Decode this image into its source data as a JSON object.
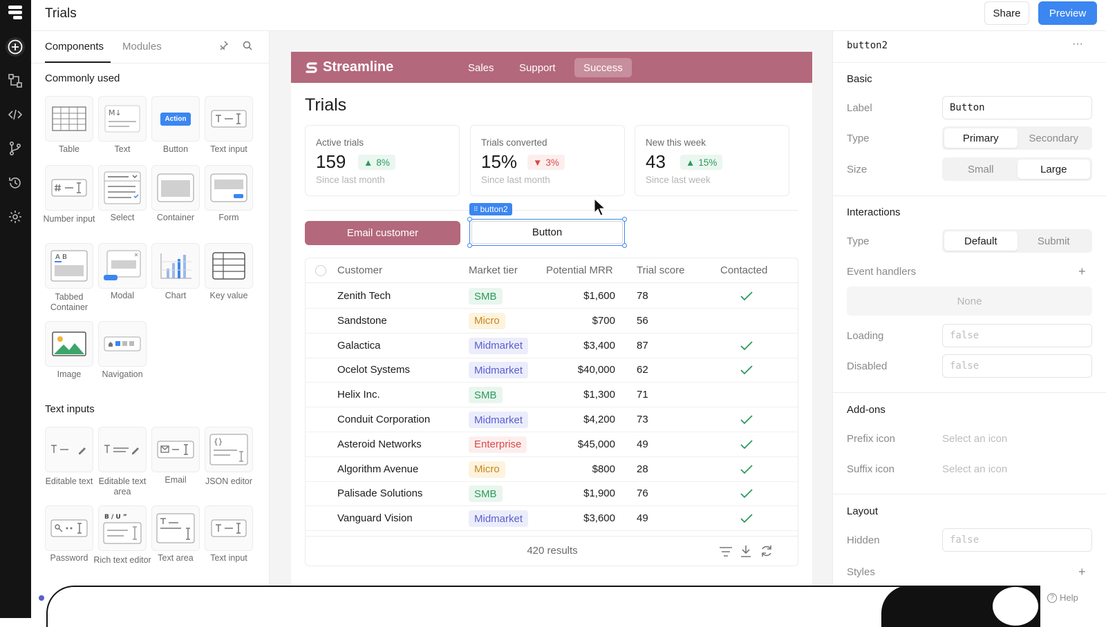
{
  "topbar": {
    "title": "Trials",
    "share_label": "Share",
    "preview_label": "Preview"
  },
  "left_panel": {
    "tabs": [
      "Components",
      "Modules"
    ],
    "active_tab": "Components",
    "sections": [
      {
        "title": "Commonly used",
        "items": [
          "Table",
          "Text",
          "Button",
          "Text input",
          "Number input",
          "Select",
          "Container",
          "Form",
          "Tabbed Container",
          "Modal",
          "Chart",
          "Key value",
          "Image",
          "Navigation"
        ]
      },
      {
        "title": "Text inputs",
        "items": [
          "Editable text",
          "Editable text area",
          "Email",
          "JSON editor",
          "Password",
          "Rich text editor",
          "Text area",
          "Text input"
        ]
      }
    ],
    "button_tile_text": "Action",
    "tabbed_tile_text": "A B",
    "markdown_tile_text": "M↓",
    "richtext_tile_text": "B / U ”"
  },
  "app": {
    "brand": "Streamline",
    "nav": [
      "Sales",
      "Support",
      "Success"
    ],
    "active_nav": "Success",
    "title": "Trials",
    "stats": [
      {
        "label": "Active trials",
        "value": "159",
        "delta": "8%",
        "direction": "up",
        "sub": "Since last month"
      },
      {
        "label": "Trials converted",
        "value": "15%",
        "delta": "3%",
        "direction": "down",
        "sub": "Since last month"
      },
      {
        "label": "New this week",
        "value": "43",
        "delta": "15%",
        "direction": "up",
        "sub": "Since last week"
      }
    ],
    "email_button": "Email customer",
    "selected_tag": "button2",
    "selected_button_label": "Button",
    "table": {
      "columns": [
        "Customer",
        "Market tier",
        "Potential MRR",
        "Trial score",
        "Contacted"
      ],
      "rows": [
        {
          "customer": "Zenith Tech",
          "tier": "SMB",
          "mrr": "$1,600",
          "score": "78",
          "contacted": true
        },
        {
          "customer": "Sandstone",
          "tier": "Micro",
          "mrr": "$700",
          "score": "56",
          "contacted": false
        },
        {
          "customer": "Galactica",
          "tier": "Midmarket",
          "mrr": "$3,400",
          "score": "87",
          "contacted": true
        },
        {
          "customer": "Ocelot Systems",
          "tier": "Midmarket",
          "mrr": "$40,000",
          "score": "62",
          "contacted": true
        },
        {
          "customer": "Helix Inc.",
          "tier": "SMB",
          "mrr": "$1,300",
          "score": "71",
          "contacted": false
        },
        {
          "customer": "Conduit Corporation",
          "tier": "Midmarket",
          "mrr": "$4,200",
          "score": "73",
          "contacted": true
        },
        {
          "customer": "Asteroid Networks",
          "tier": "Enterprise",
          "mrr": "$45,000",
          "score": "49",
          "contacted": true
        },
        {
          "customer": "Algorithm Avenue",
          "tier": "Micro",
          "mrr": "$800",
          "score": "28",
          "contacted": true
        },
        {
          "customer": "Palisade Solutions",
          "tier": "SMB",
          "mrr": "$1,900",
          "score": "76",
          "contacted": true
        },
        {
          "customer": "Vanguard Vision",
          "tier": "Midmarket",
          "mrr": "$3,600",
          "score": "49",
          "contacted": true
        }
      ],
      "footer": "420 results"
    },
    "tier_colors": {
      "SMB": {
        "bg": "#e8f6ee",
        "fg": "#2d9a5b"
      },
      "Micro": {
        "bg": "#fdf3de",
        "fg": "#c9861a"
      },
      "Midmarket": {
        "bg": "#ecedfb",
        "fg": "#5a5fcf"
      },
      "Enterprise": {
        "bg": "#fdeeee",
        "fg": "#d84a4a"
      }
    }
  },
  "right_panel": {
    "component_name": "button2",
    "basic": {
      "title": "Basic",
      "label_label": "Label",
      "label_value": "Button",
      "type_label": "Type",
      "type_options": [
        "Primary",
        "Secondary"
      ],
      "type_selected": "Primary",
      "size_label": "Size",
      "size_options": [
        "Small",
        "Large"
      ],
      "size_selected": "Large"
    },
    "interactions": {
      "title": "Interactions",
      "type_label": "Type",
      "type_options": [
        "Default",
        "Submit"
      ],
      "type_selected": "Default",
      "event_handlers_label": "Event handlers",
      "event_handlers_value": "None",
      "loading_label": "Loading",
      "loading_value": "false",
      "disabled_label": "Disabled",
      "disabled_value": "false"
    },
    "addons": {
      "title": "Add-ons",
      "prefix_label": "Prefix icon",
      "prefix_value": "Select an icon",
      "suffix_label": "Suffix icon",
      "suffix_value": "Select an icon"
    },
    "layout": {
      "title": "Layout",
      "hidden_label": "Hidden",
      "hidden_value": "false",
      "styles_label": "Styles"
    }
  },
  "help_label": "Help",
  "colors": {
    "accent": "#3b86f1",
    "brand": "#b4687c",
    "rail": "#141414"
  }
}
